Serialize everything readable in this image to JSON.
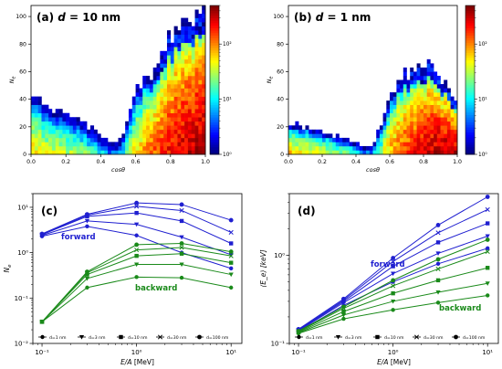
{
  "chart_data": [
    {
      "id": "a",
      "type": "heatmap",
      "panel_label": "(a)",
      "annotation_var": "d",
      "annotation_val": "= 10 nm",
      "xlabel": "cosθ",
      "ylabel": "N",
      "ylabel_sub": "e",
      "xlim": [
        0,
        1
      ],
      "ylim": [
        0,
        108
      ],
      "x_ticks": [
        0,
        0.2,
        0.4,
        0.6,
        0.8,
        1.0
      ],
      "x_tick_labels": [
        "0.0",
        "0.2",
        "0.4",
        "0.6",
        "0.8",
        "1.0"
      ],
      "y_ticks": [
        0,
        20,
        40,
        60,
        80,
        100
      ],
      "y_tick_labels": [
        "0",
        "20",
        "40",
        "60",
        "80",
        "100"
      ],
      "bins": {
        "x": 50,
        "y": 36
      },
      "color_scale": "log",
      "colorbar_range": [
        1,
        500
      ],
      "colorbar_ticks": [
        "10⁰",
        "10¹",
        "10²"
      ],
      "density_profile": {
        "cos": [
          0,
          0.1,
          0.2,
          0.3,
          0.4,
          0.45,
          0.5,
          0.55,
          0.6,
          0.7,
          0.8,
          0.9,
          1.0
        ],
        "upper_edge": [
          42,
          36,
          30,
          24,
          14,
          9,
          8,
          22,
          48,
          62,
          84,
          95,
          104
        ],
        "peak_count": [
          60,
          45,
          35,
          25,
          12,
          6,
          5,
          20,
          60,
          140,
          260,
          380,
          430
        ]
      }
    },
    {
      "id": "b",
      "type": "heatmap",
      "panel_label": "(b)",
      "annotation_var": "d",
      "annotation_val": "= 1 nm",
      "xlabel": "cosθ",
      "ylabel": "N",
      "ylabel_sub": "e",
      "xlim": [
        0,
        1
      ],
      "ylim": [
        0,
        108
      ],
      "x_ticks": [
        0,
        0.2,
        0.4,
        0.6,
        0.8,
        1.0
      ],
      "x_tick_labels": [
        "0.0",
        "0.2",
        "0.4",
        "0.6",
        "0.8",
        "1.0"
      ],
      "y_ticks": [
        0,
        20,
        40,
        60,
        80,
        100
      ],
      "y_tick_labels": [
        "0",
        "20",
        "40",
        "60",
        "80",
        "100"
      ],
      "bins": {
        "x": 50,
        "y": 36
      },
      "color_scale": "log",
      "colorbar_range": [
        1,
        500
      ],
      "colorbar_ticks": [
        "10⁰",
        "10¹",
        "10²"
      ],
      "density_profile": {
        "cos": [
          0,
          0.1,
          0.2,
          0.3,
          0.4,
          0.45,
          0.5,
          0.55,
          0.6,
          0.7,
          0.8,
          0.9,
          1.0
        ],
        "upper_edge": [
          22,
          20,
          17,
          13,
          9,
          5,
          7,
          22,
          45,
          58,
          68,
          55,
          40
        ],
        "peak_count": [
          80,
          60,
          45,
          30,
          15,
          6,
          8,
          30,
          90,
          180,
          300,
          420,
          380
        ]
      }
    },
    {
      "id": "c",
      "type": "line",
      "panel_label": "(c)",
      "xlabel_var": "E/A",
      "xlabel_unit": " [MeV]",
      "ylabel": "N",
      "ylabel_sub": "e",
      "x_scale": "log",
      "y_scale": "log",
      "xlim": [
        0.08,
        13
      ],
      "ylim": [
        0.01,
        20
      ],
      "x_ticks": [
        0.1,
        1,
        10
      ],
      "x_tick_labels": [
        "10⁻¹",
        "10⁰",
        "10¹"
      ],
      "y_ticks": [
        0.01,
        0.1,
        1,
        10
      ],
      "y_tick_labels": [
        "10⁻²",
        "10⁻¹",
        "10⁰",
        "10¹"
      ],
      "x": [
        0.1,
        0.3,
        1,
        3,
        10
      ],
      "groups": [
        {
          "label": "forward",
          "color": "#1f1fd0"
        },
        {
          "label": "backward",
          "color": "#1a8a1a"
        }
      ],
      "series": [
        {
          "name": "d=1 nm",
          "marker": "circle",
          "group": "forward",
          "values": [
            2.3,
            3.8,
            2.4,
            1.0,
            0.45
          ]
        },
        {
          "name": "d=3 nm",
          "marker": "triangle",
          "group": "forward",
          "values": [
            2.4,
            5.0,
            4.2,
            2.2,
            0.9
          ]
        },
        {
          "name": "d=10 nm",
          "marker": "square",
          "group": "forward",
          "values": [
            2.5,
            6.3,
            7.5,
            5.0,
            1.6
          ]
        },
        {
          "name": "d=30 nm",
          "marker": "x",
          "group": "forward",
          "values": [
            2.5,
            6.7,
            10.5,
            8.5,
            2.8
          ]
        },
        {
          "name": "d=100 nm",
          "marker": "hexagon",
          "group": "forward",
          "values": [
            2.6,
            7.0,
            12.5,
            11.5,
            5.2
          ]
        },
        {
          "name": "d=1 nm",
          "marker": "circle",
          "group": "backward",
          "values": [
            0.03,
            0.17,
            0.29,
            0.28,
            0.17
          ]
        },
        {
          "name": "d=3 nm",
          "marker": "triangle",
          "group": "backward",
          "values": [
            0.03,
            0.27,
            0.55,
            0.55,
            0.33
          ]
        },
        {
          "name": "d=10 nm",
          "marker": "square",
          "group": "backward",
          "values": [
            0.03,
            0.33,
            0.85,
            0.95,
            0.6
          ]
        },
        {
          "name": "d=30 nm",
          "marker": "x",
          "group": "backward",
          "values": [
            0.03,
            0.36,
            1.15,
            1.3,
            0.85
          ]
        },
        {
          "name": "d=100 nm",
          "marker": "hexagon",
          "group": "backward",
          "values": [
            0.03,
            0.38,
            1.5,
            1.6,
            1.05
          ]
        }
      ],
      "legend": [
        "d=1 nm",
        "d=3 nm",
        "d=10 nm",
        "d=30 nm",
        "d=100 nm"
      ],
      "legend_position": "bottom"
    },
    {
      "id": "d",
      "type": "line",
      "panel_label": "(d)",
      "xlabel_var": "E/A",
      "xlabel_unit": " [MeV]",
      "ylabel": "⟨E_e⟩ [keV]",
      "x_scale": "log",
      "y_scale": "log",
      "xlim": [
        0.08,
        13
      ],
      "ylim": [
        0.1,
        5
      ],
      "x_ticks": [
        0.1,
        1,
        10
      ],
      "x_tick_labels": [
        "10⁻¹",
        "10⁰",
        "10¹"
      ],
      "y_ticks": [
        0.1,
        1
      ],
      "y_tick_labels": [
        "10⁻¹",
        "10⁰"
      ],
      "x": [
        0.1,
        0.3,
        1,
        3,
        10
      ],
      "groups": [
        {
          "label": "forward",
          "color": "#1f1fd0"
        },
        {
          "label": "backward",
          "color": "#1a8a1a"
        }
      ],
      "series": [
        {
          "name": "d=1 nm",
          "marker": "circle",
          "group": "forward",
          "values": [
            0.135,
            0.27,
            0.5,
            0.8,
            1.2
          ]
        },
        {
          "name": "d=3 nm",
          "marker": "triangle",
          "group": "forward",
          "values": [
            0.138,
            0.29,
            0.62,
            1.05,
            1.65
          ]
        },
        {
          "name": "d=10 nm",
          "marker": "square",
          "group": "forward",
          "values": [
            0.14,
            0.3,
            0.75,
            1.4,
            2.3
          ]
        },
        {
          "name": "d=30 nm",
          "marker": "x",
          "group": "forward",
          "values": [
            0.142,
            0.31,
            0.85,
            1.8,
            3.3
          ]
        },
        {
          "name": "d=100 nm",
          "marker": "hexagon",
          "group": "forward",
          "values": [
            0.145,
            0.32,
            0.93,
            2.2,
            4.6
          ]
        },
        {
          "name": "d=1 nm",
          "marker": "circle",
          "group": "backward",
          "values": [
            0.13,
            0.19,
            0.24,
            0.29,
            0.35
          ]
        },
        {
          "name": "d=3 nm",
          "marker": "triangle",
          "group": "backward",
          "values": [
            0.132,
            0.21,
            0.3,
            0.38,
            0.48
          ]
        },
        {
          "name": "d=10 nm",
          "marker": "square",
          "group": "backward",
          "values": [
            0.134,
            0.23,
            0.37,
            0.52,
            0.72
          ]
        },
        {
          "name": "d=30 nm",
          "marker": "x",
          "group": "backward",
          "values": [
            0.136,
            0.25,
            0.45,
            0.7,
            1.1
          ]
        },
        {
          "name": "d=100 nm",
          "marker": "hexagon",
          "group": "backward",
          "values": [
            0.138,
            0.26,
            0.52,
            0.9,
            1.5
          ]
        }
      ],
      "legend": [
        "d=1 nm",
        "d=3 nm",
        "d=10 nm",
        "d=30 nm",
        "d=100 nm"
      ],
      "legend_position": "bottom"
    }
  ]
}
